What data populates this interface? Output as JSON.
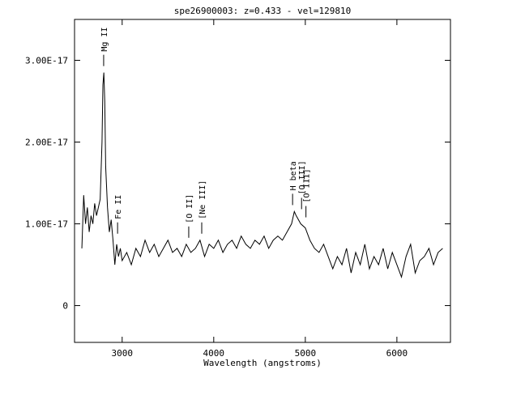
{
  "chart_data": {
    "type": "line",
    "title": "spe26900003: z=0.433 - vel=129810",
    "x_label": "Wavelength (angstroms)",
    "x": [
      2560,
      2580,
      2600,
      2620,
      2640,
      2660,
      2680,
      2700,
      2720,
      2740,
      2760,
      2780,
      2790,
      2800,
      2810,
      2820,
      2840,
      2860,
      2880,
      2900,
      2920,
      2940,
      2960,
      2980,
      3000,
      3050,
      3100,
      3150,
      3200,
      3250,
      3300,
      3350,
      3400,
      3450,
      3500,
      3550,
      3600,
      3650,
      3700,
      3750,
      3800,
      3850,
      3900,
      3950,
      4000,
      4050,
      4100,
      4150,
      4200,
      4250,
      4300,
      4350,
      4400,
      4450,
      4500,
      4550,
      4600,
      4650,
      4700,
      4750,
      4800,
      4850,
      4880,
      4900,
      4950,
      5000,
      5050,
      5100,
      5150,
      5200,
      5250,
      5300,
      5350,
      5400,
      5450,
      5500,
      5550,
      5600,
      5650,
      5700,
      5750,
      5800,
      5850,
      5900,
      5950,
      6000,
      6050,
      6100,
      6150,
      6200,
      6250,
      6300,
      6350,
      6400,
      6450,
      6500
    ],
    "values": [
      7e-18,
      1.35e-17,
      1e-17,
      1.2e-17,
      9e-18,
      1.1e-17,
      1e-17,
      1.25e-17,
      1.1e-17,
      1.2e-17,
      1.3e-17,
      2e-17,
      2.7e-17,
      2.85e-17,
      2.5e-17,
      1.7e-17,
      1.2e-17,
      9e-18,
      1.05e-17,
      8e-18,
      5e-18,
      7.5e-18,
      6e-18,
      7e-18,
      5.5e-18,
      6.5e-18,
      5e-18,
      7e-18,
      6e-18,
      8e-18,
      6.5e-18,
      7.5e-18,
      6e-18,
      7e-18,
      8e-18,
      6.5e-18,
      7e-18,
      6e-18,
      7.5e-18,
      6.5e-18,
      7e-18,
      8e-18,
      6e-18,
      7.5e-18,
      7e-18,
      8e-18,
      6.5e-18,
      7.5e-18,
      8e-18,
      7e-18,
      8.5e-18,
      7.5e-18,
      7e-18,
      8e-18,
      7.5e-18,
      8.5e-18,
      7e-18,
      8e-18,
      8.5e-18,
      8e-18,
      9e-18,
      1e-17,
      1.15e-17,
      1.1e-17,
      1e-17,
      9.5e-18,
      8e-18,
      7e-18,
      6.5e-18,
      7.5e-18,
      6e-18,
      4.5e-18,
      6e-18,
      5e-18,
      7e-18,
      4e-18,
      6.5e-18,
      5e-18,
      7.5e-18,
      4.5e-18,
      6e-18,
      5e-18,
      7e-18,
      4.5e-18,
      6.5e-18,
      5e-18,
      3.5e-18,
      6e-18,
      7.5e-18,
      4e-18,
      5.5e-18,
      6e-18,
      7e-18,
      5e-18,
      6.5e-18,
      7e-18
    ],
    "color": "#000000",
    "xlim": [
      2480,
      6585
    ],
    "xticks": [
      3000,
      4000,
      5000,
      6000
    ],
    "ylim": [
      -4.5e-18,
      3.5e-17
    ],
    "yticks": [
      0,
      {
        "value": 1e-17,
        "label": "1.00E-17"
      },
      {
        "value": 2e-17,
        "label": "2.00E-17"
      },
      {
        "value": 3e-17,
        "label": "3.00E-17"
      }
    ],
    "annotations": [
      {
        "text": "Mg II",
        "x": 2798
      },
      {
        "text": "Fe II",
        "x": 2950
      },
      {
        "text": "[O II]",
        "x": 3727
      },
      {
        "text": "[Ne III]",
        "x": 3869
      },
      {
        "text": "H beta",
        "x": 4861
      },
      {
        "text": "[O III]",
        "x": 4959
      },
      {
        "text": "[O III]",
        "x": 5007
      }
    ]
  }
}
